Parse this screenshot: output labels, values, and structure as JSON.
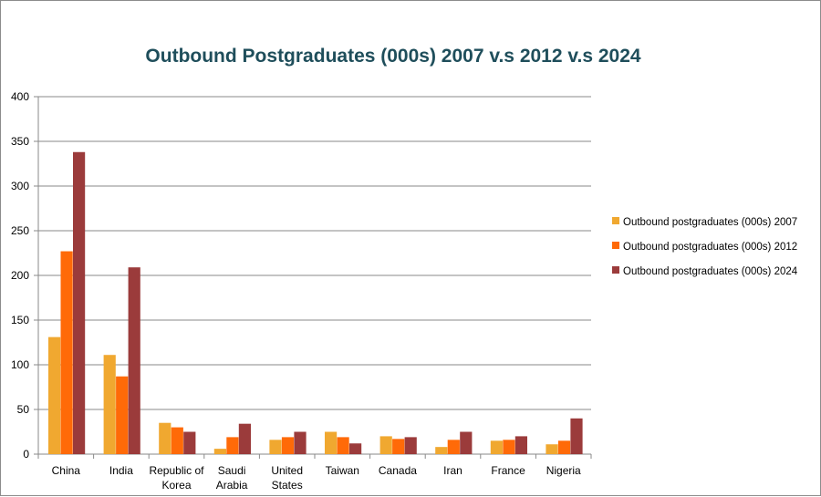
{
  "chart_data": {
    "type": "bar",
    "title": "Outbound Postgraduates (000s) 2007 v.s 2012 v.s 2024",
    "xlabel": "",
    "ylabel": "",
    "ylim": [
      0,
      400
    ],
    "yticks": [
      0,
      50,
      100,
      150,
      200,
      250,
      300,
      350,
      400
    ],
    "grid": true,
    "legend_position": "right",
    "categories": [
      [
        "China"
      ],
      [
        "India"
      ],
      [
        "Republic of",
        "Korea"
      ],
      [
        "Saudi",
        "Arabia"
      ],
      [
        "United",
        "States"
      ],
      [
        "Taiwan"
      ],
      [
        "Canada"
      ],
      [
        "Iran"
      ],
      [
        "France"
      ],
      [
        "Nigeria"
      ]
    ],
    "series": [
      {
        "name": "Outbound postgraduates (000s) 2007",
        "color": "#f0a830",
        "values": [
          131,
          111,
          35,
          6,
          16,
          25,
          20,
          8,
          15,
          11
        ]
      },
      {
        "name": "Outbound postgraduates (000s) 2012",
        "color": "#ff6a08",
        "values": [
          227,
          87,
          30,
          19,
          19,
          19,
          17,
          16,
          16,
          15
        ]
      },
      {
        "name": "Outbound postgraduates (000s) 2024",
        "color": "#9b3b3b",
        "values": [
          338,
          209,
          25,
          34,
          25,
          12,
          19,
          25,
          20,
          40
        ]
      }
    ]
  }
}
